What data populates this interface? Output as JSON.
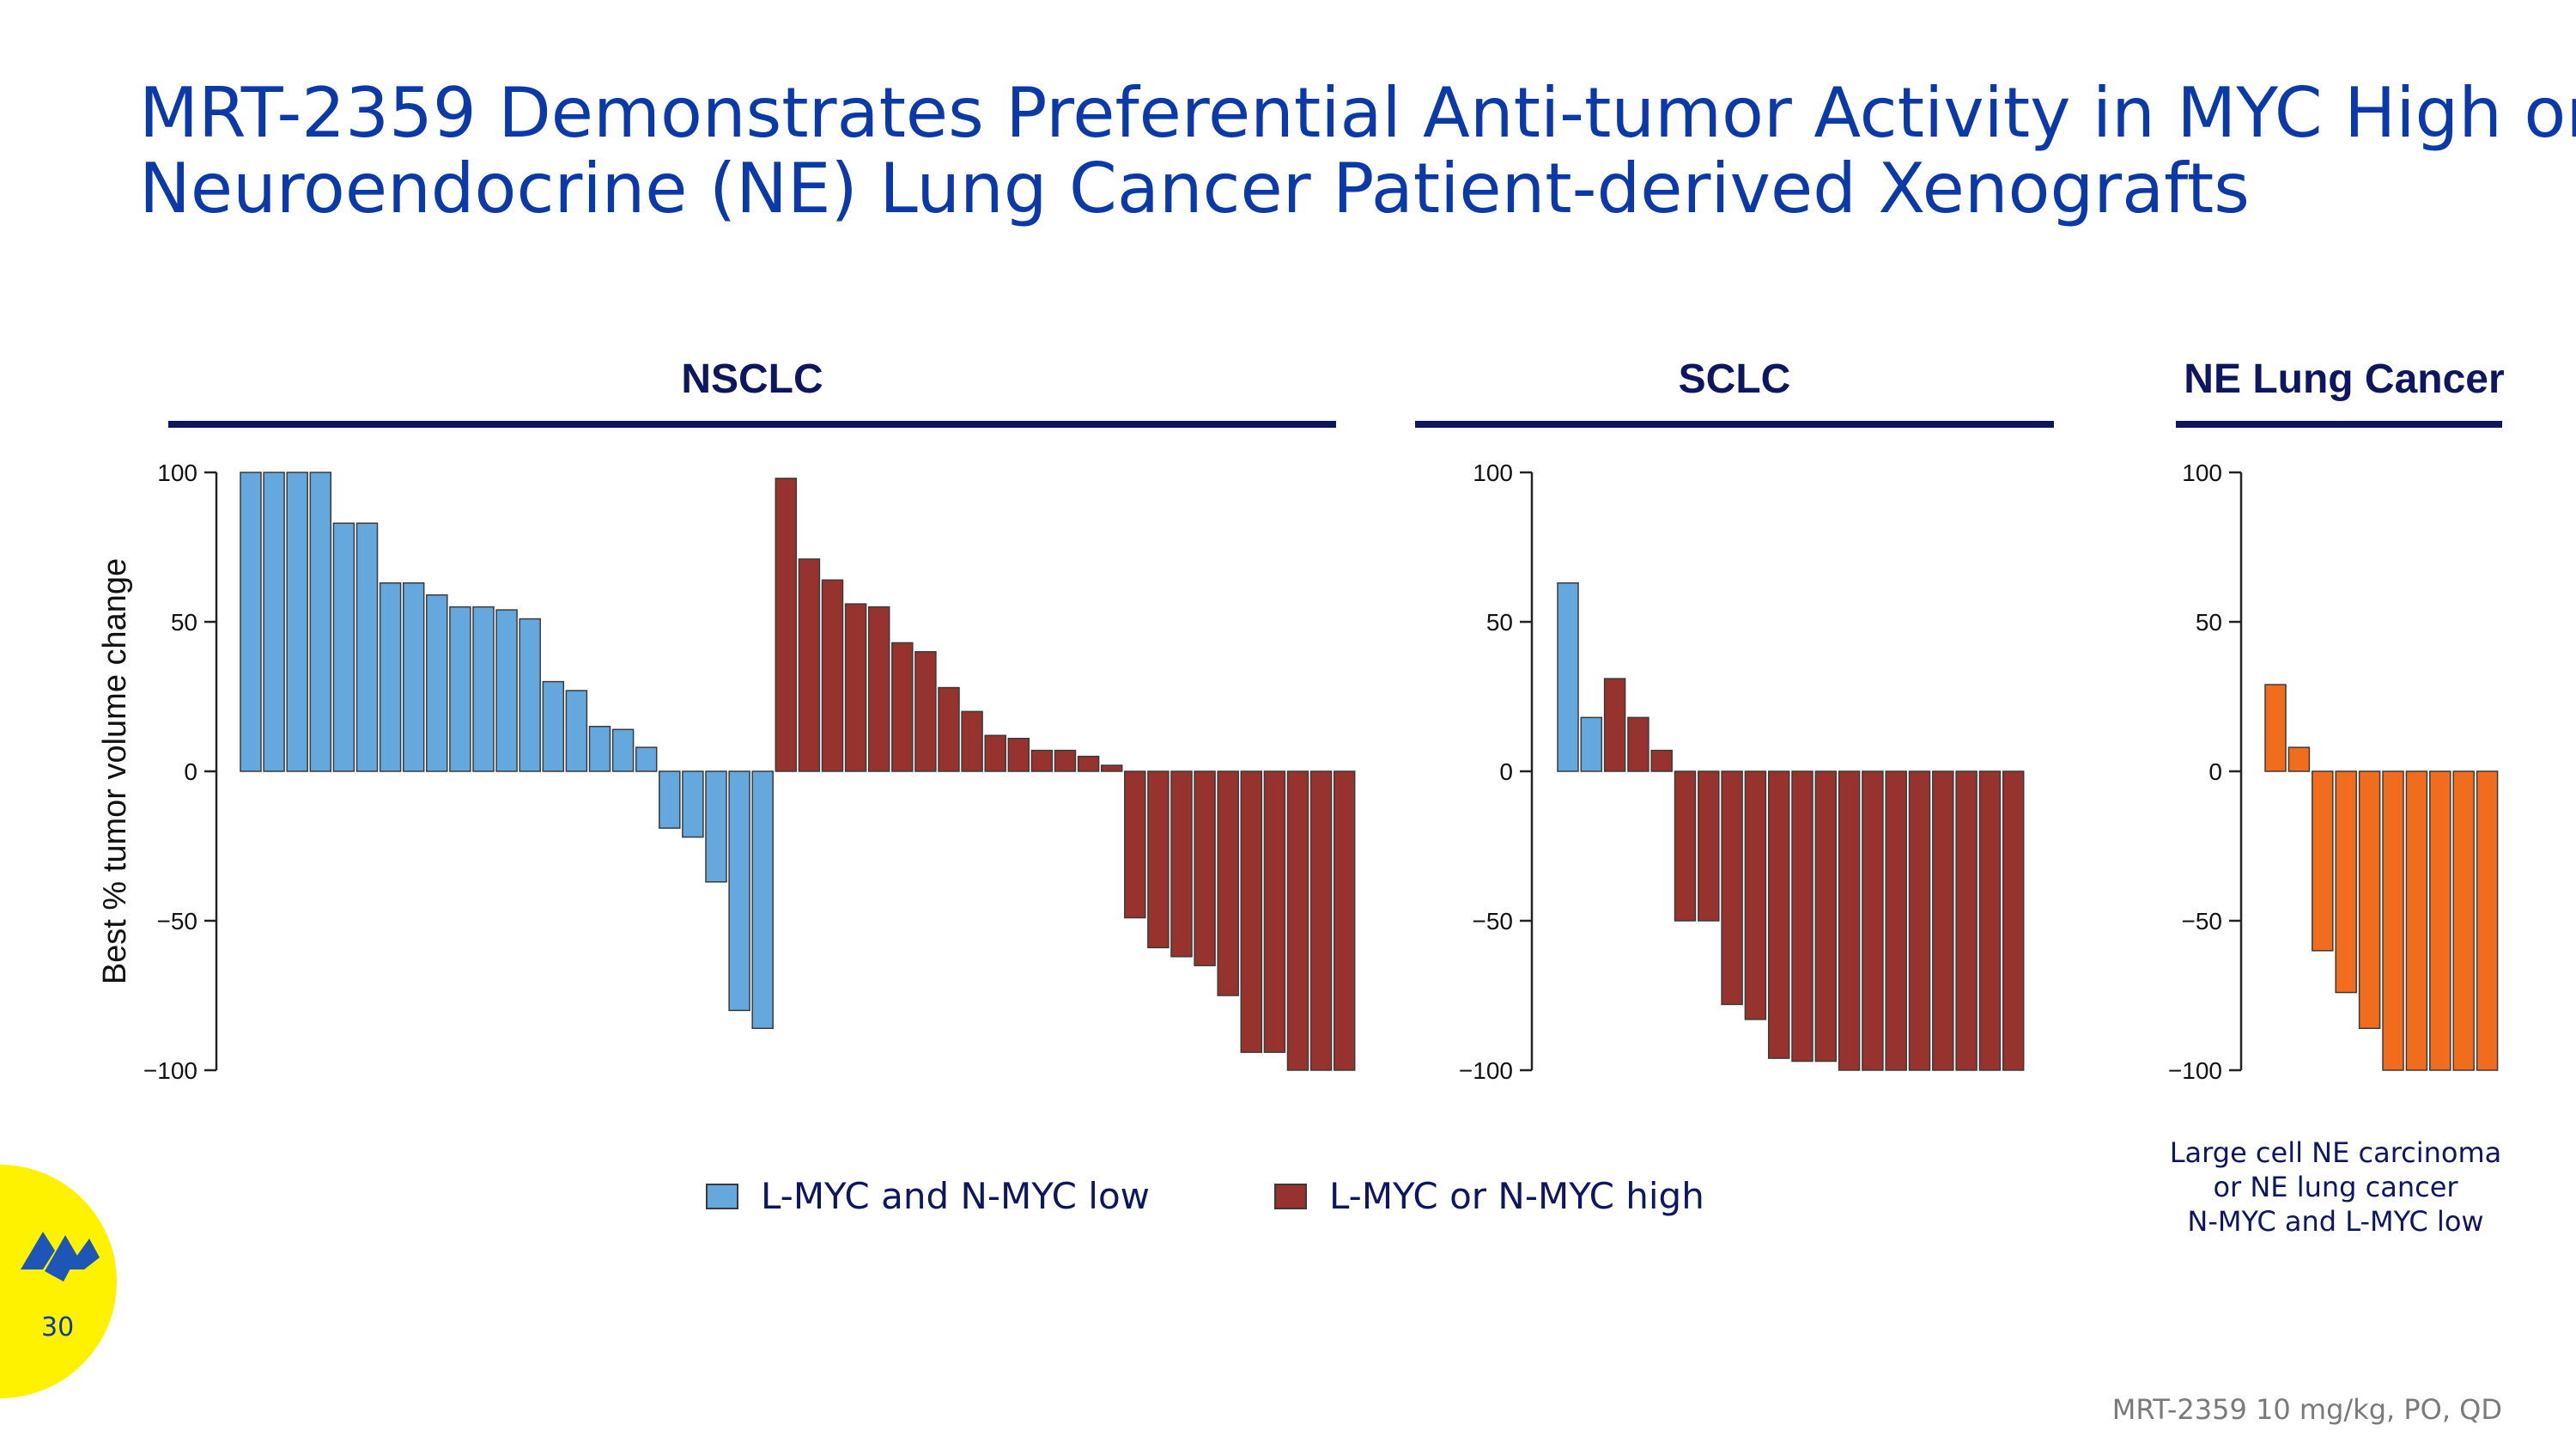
{
  "slide": {
    "title_line1": "MRT-2359 Demonstrates Preferential Anti-tumor Activity in MYC High or",
    "title_line2": "Neuroendocrine (NE) Lung Cancer Patient-derived Xenografts",
    "page_number": "30",
    "footnote": "MRT-2359 10 mg/kg, PO, QD",
    "ne_note_line1": "Large cell NE carcinoma",
    "ne_note_line2": "or NE lung cancer",
    "ne_note_line3": "N-MYC and L-MYC low"
  },
  "legend": [
    {
      "label": "L-MYC and N-MYC low",
      "color": "#64a8dd"
    },
    {
      "label": "L-MYC or N-MYC high",
      "color": "#97332f"
    }
  ],
  "colors": {
    "low": "#64a8dd",
    "high": "#97332f",
    "ne": "#ef6d1c",
    "title": "#0b3aa8",
    "heading": "#0f1660"
  },
  "chart_data": [
    {
      "type": "bar",
      "title": "NSCLC",
      "ylabel": "Best % tumor volume change",
      "ylim": [
        -100,
        100
      ],
      "yticks": [
        "100",
        "50",
        "0",
        "−50",
        "−100"
      ],
      "series": [
        {
          "name": "L-MYC and N-MYC low",
          "values": [
            100,
            100,
            100,
            100,
            83,
            83,
            63,
            63,
            59,
            55,
            55,
            54,
            51,
            30,
            27,
            15,
            14,
            8,
            -19,
            -22,
            -37,
            -80,
            -86
          ]
        },
        {
          "name": "L-MYC or N-MYC high",
          "values": [
            98,
            71,
            64,
            56,
            55,
            43,
            40,
            28,
            20,
            12,
            11,
            7,
            7,
            5,
            2,
            -49,
            -59,
            -62,
            -65,
            -75,
            -94,
            -94,
            -100,
            -100,
            -100
          ]
        }
      ]
    },
    {
      "type": "bar",
      "title": "SCLC",
      "ylim": [
        -100,
        100
      ],
      "yticks": [
        "100",
        "50",
        "0",
        "−50",
        "−100"
      ],
      "series": [
        {
          "name": "L-MYC and N-MYC low",
          "values": [
            63,
            18
          ]
        },
        {
          "name": "L-MYC or N-MYC high",
          "values": [
            31,
            18,
            7,
            -50,
            -50,
            -78,
            -83,
            -96,
            -97,
            -97,
            -100,
            -100,
            -100,
            -100,
            -100,
            -100,
            -100,
            -100
          ]
        }
      ]
    },
    {
      "type": "bar",
      "title": "NE Lung Cancer",
      "ylim": [
        -100,
        100
      ],
      "yticks": [
        "100",
        "50",
        "0",
        "−50",
        "−100"
      ],
      "series": [
        {
          "name": "Large cell NE carcinoma or NE lung cancer N-MYC and L-MYC low",
          "values": [
            29,
            8,
            -60,
            -74,
            -86,
            -100,
            -100,
            -100,
            -100,
            -100
          ]
        }
      ]
    }
  ]
}
